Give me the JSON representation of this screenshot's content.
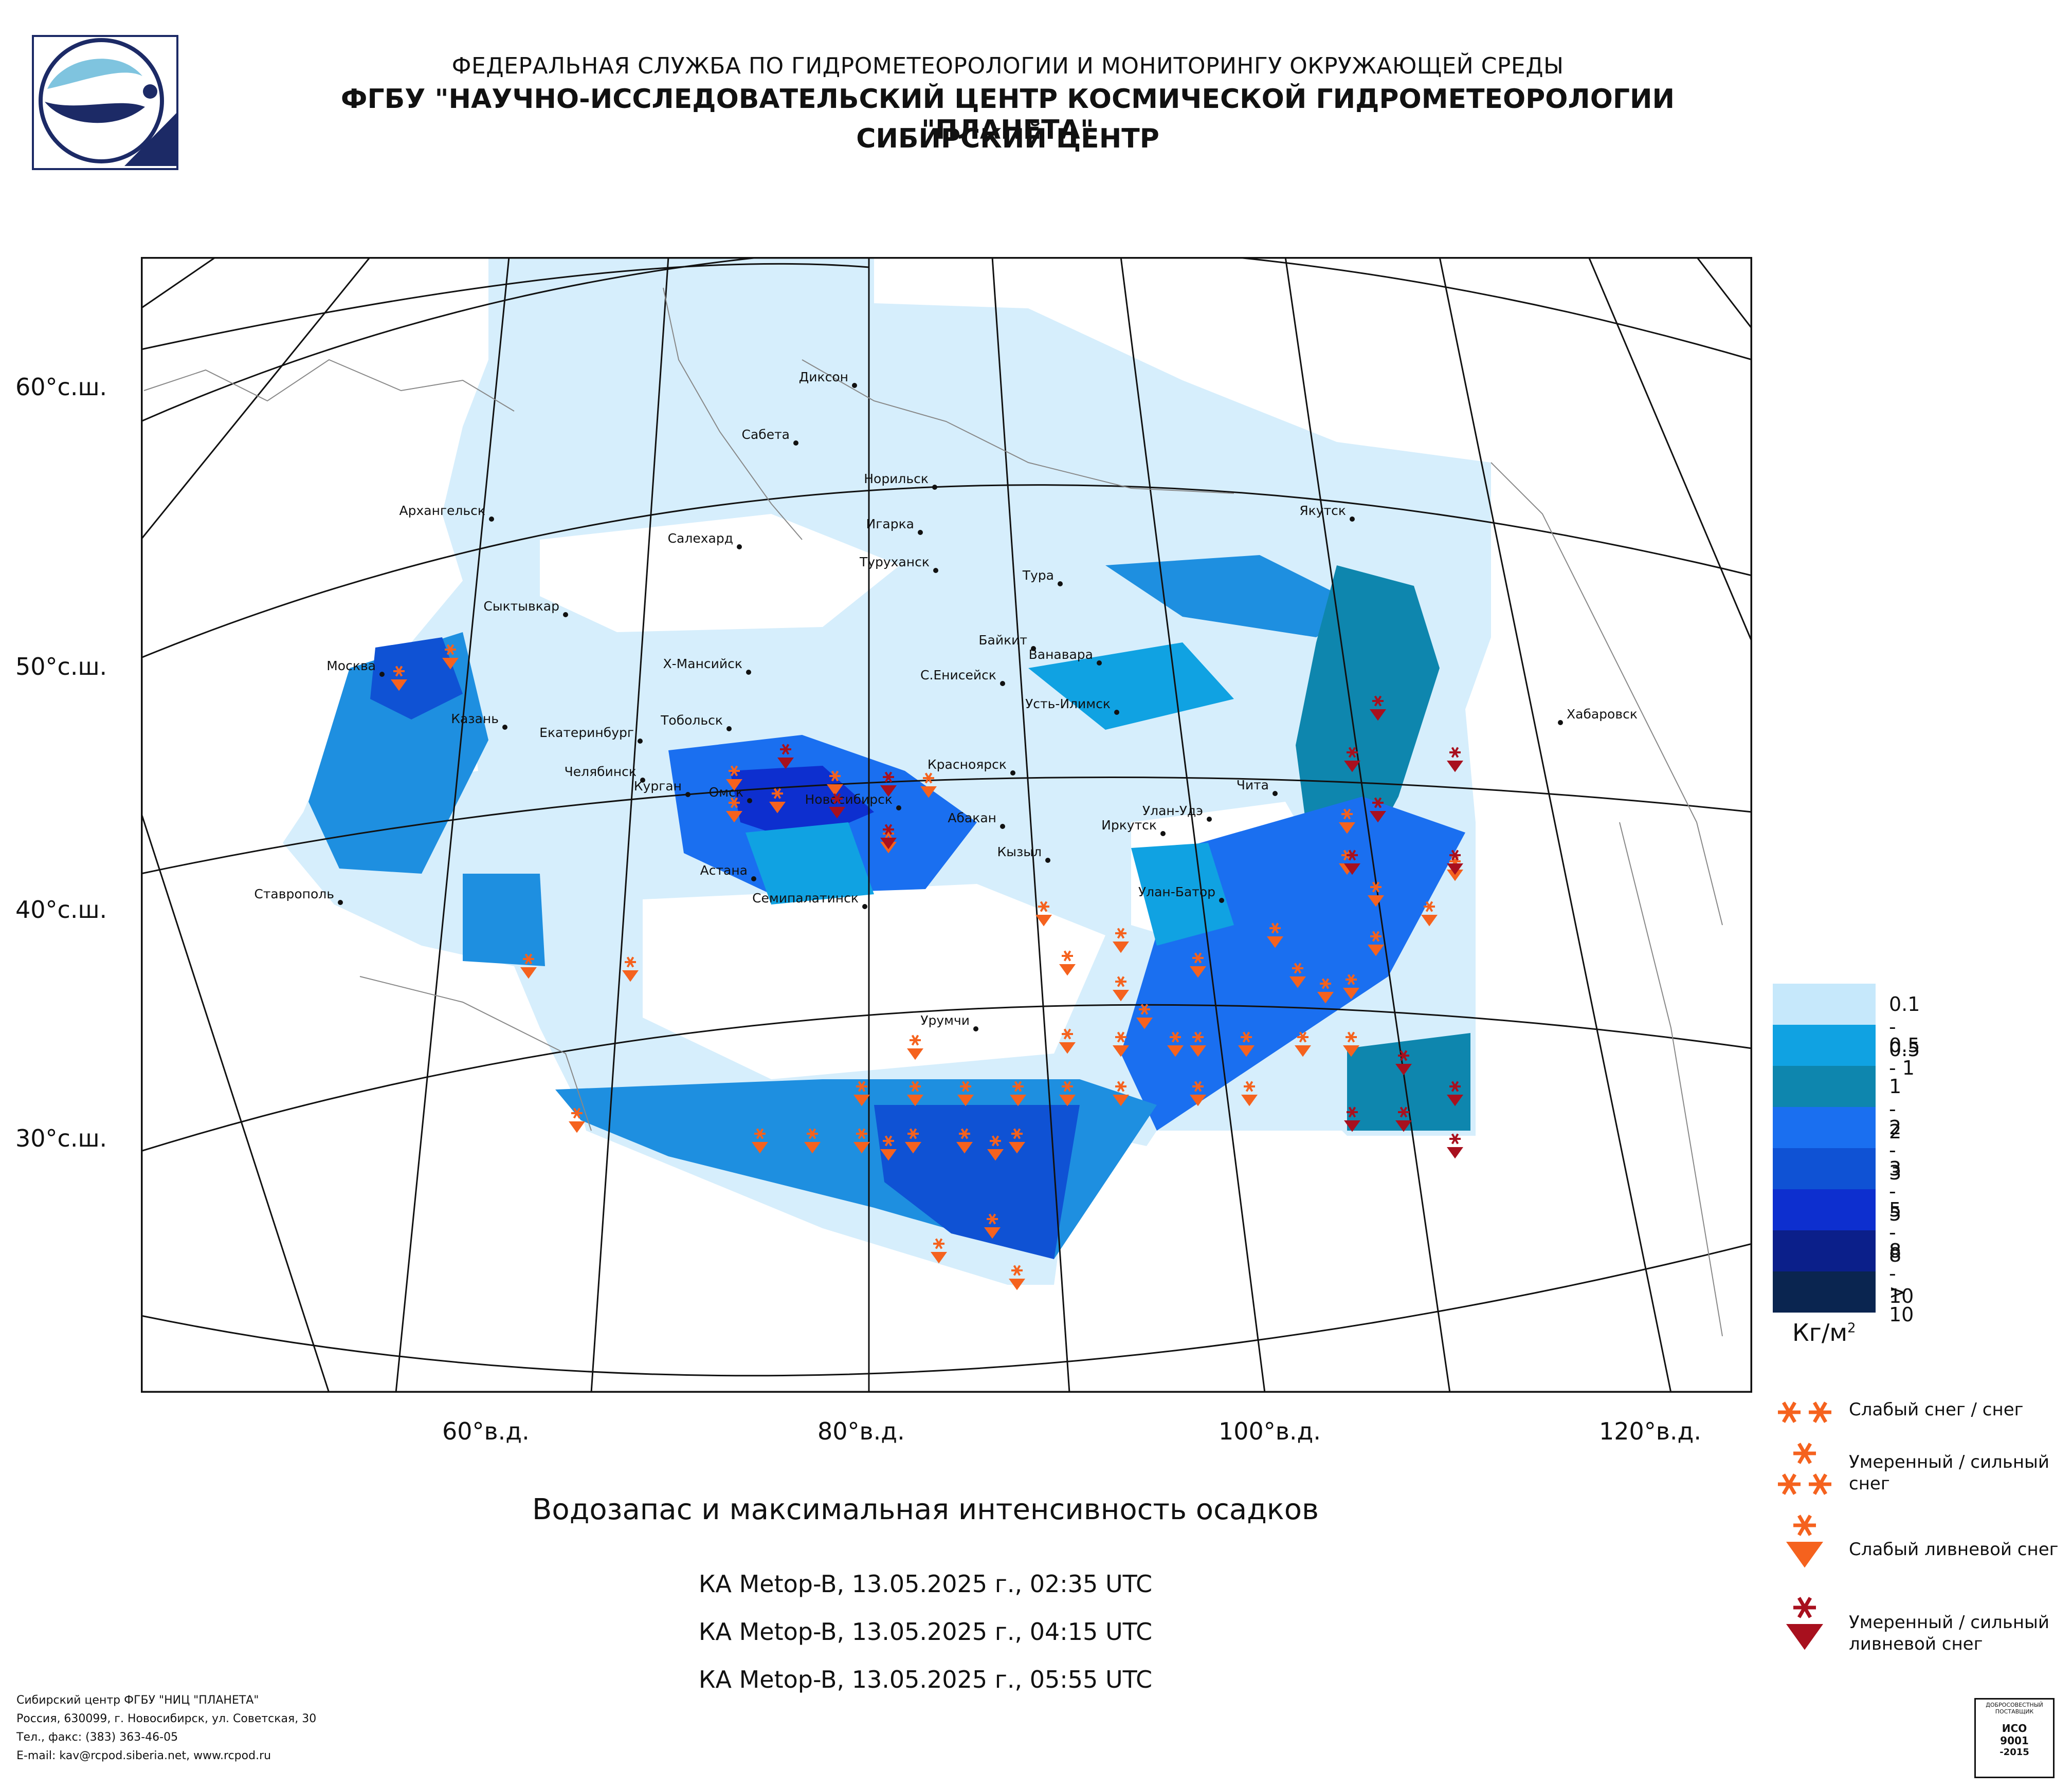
{
  "header": {
    "line1": "ФЕДЕРАЛЬНАЯ СЛУЖБА ПО ГИДРОМЕТЕОРОЛОГИИ И МОНИТОРИНГУ ОКРУЖАЮЩЕЙ СРЕДЫ",
    "line2": "ФГБУ \"НАУЧНО-ИССЛЕДОВАТЕЛЬСКИЙ ЦЕНТР КОСМИЧЕСКОЙ ГИДРОМЕТЕОРОЛОГИИ \"ПЛАНЕТА\"",
    "line3": "СИБИРСКИЙ ЦЕНТР"
  },
  "map": {
    "lat_labels": [
      "60°с.ш.",
      "50°с.ш.",
      "40°с.ш.",
      "30°с.ш."
    ],
    "lon_labels": [
      "60°в.д.",
      "80°в.д.",
      "100°в.д.",
      "120°в.д."
    ],
    "cities": [
      "Диксон",
      "Сабета",
      "Норильск",
      "Архангельск",
      "Якутск",
      "Игарка",
      "Салехард",
      "Туруханск",
      "Тура",
      "Сыктывкар",
      "Байкит",
      "Ванавара",
      "Москва",
      "Х-Мансийск",
      "С.Енисейск",
      "Усть-Илимск",
      "Хабаровск",
      "Казань",
      "Тобольск",
      "Екатеринбург",
      "Красноярск",
      "Челябинск",
      "Чита",
      "Курган",
      "Омск",
      "Новосибирск",
      "Абакан",
      "Улан-Удэ",
      "Иркутск",
      "Кызыл",
      "Астана",
      "Ставрополь",
      "Улан-Батор",
      "Семипалатинск",
      "Урумчи"
    ]
  },
  "legend": {
    "classes": [
      {
        "label": "0.1 - 0.5",
        "color": "#c6e8fb"
      },
      {
        "label": "0.5 - 1",
        "color": "#10a2e2"
      },
      {
        "label": "1 - 2",
        "color": "#0e86ae"
      },
      {
        "label": "2 - 3",
        "color": "#1a6ff0"
      },
      {
        "label": "3 - 5",
        "color": "#0f52d4"
      },
      {
        "label": "5 - 8",
        "color": "#0d2fcf"
      },
      {
        "label": "8 - 10",
        "color": "#0b1f8a"
      },
      {
        "label": "> 10",
        "color": "#0a2550"
      }
    ],
    "units": "Кг/м",
    "units_sup": "2",
    "symbols": {
      "light_snow": "Слабый снег / снег",
      "moderate_snow_1": "Умеренный / сильный",
      "moderate_snow_2": "снег",
      "light_shower": "Слабый ливневой снег",
      "heavy_shower_1": "Умеренный / сильный",
      "heavy_shower_2": "ливневой снег"
    },
    "symbol_colors": {
      "orange": "#f5621e",
      "red": "#a8101e"
    }
  },
  "product": {
    "title": "Водозапас и максимальная интенсивность осадков",
    "passes": [
      "КА Metop-B, 13.05.2025 г., 02:35 UTC",
      "КА Metop-B, 13.05.2025 г., 04:15 UTC",
      "КА Metop-B, 13.05.2025 г., 05:55 UTC"
    ]
  },
  "footer": {
    "line1": "Сибирский центр ФГБУ \"НИЦ \"ПЛАНЕТА\"",
    "line2": "Россия, 630099, г. Новосибирск, ул. Советская, 30",
    "line3": "Тел., факс: (383) 363-46-05",
    "line4": "E-mail: kav@rcpod.siberia.net, www.rcpod.ru"
  },
  "iso_badge": {
    "top": "ДОБРОСОВЕСТНЫЙ ПОСТАВЩИК",
    "l1": "ИСО",
    "l2": "9001",
    "l3": "-2015"
  }
}
